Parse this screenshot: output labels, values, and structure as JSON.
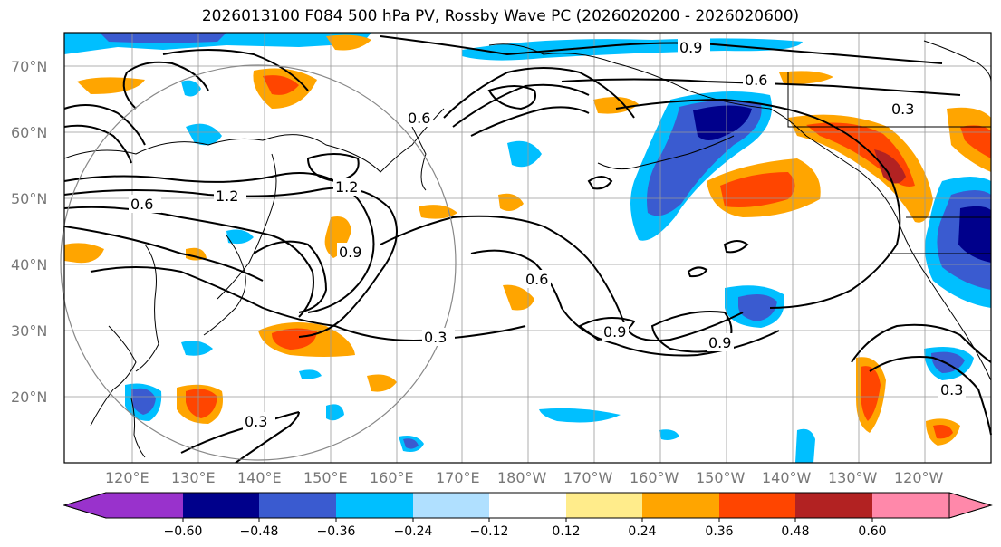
{
  "title": "2026013100 F084 500 hPa PV, Rossby Wave PC (2026020200 - 2026020600)",
  "lat_labels": [
    "70°N",
    "60°N",
    "50°N",
    "40°N",
    "30°N",
    "20°N"
  ],
  "lon_labels": [
    "120°E",
    "130°E",
    "140°E",
    "150°E",
    "160°E",
    "170°E",
    "180°W",
    "170°W",
    "160°W",
    "150°W",
    "140°W",
    "130°W",
    "120°W"
  ],
  "colorbar": {
    "ticks": [
      "−0.60",
      "−0.48",
      "−0.36",
      "−0.24",
      "−0.12",
      "0.12",
      "0.24",
      "0.36",
      "0.48",
      "0.60"
    ],
    "colors": [
      "#9932cc",
      "#00008b",
      "#3a5bd0",
      "#00bfff",
      "#b0e0ff",
      "#ffffff",
      "#ffec8b",
      "#ffa500",
      "#ff4500",
      "#b22222",
      "#ff88aa"
    ]
  },
  "contour_labels": [
    "0.9",
    "0.6",
    "0.3",
    "1.2",
    "0.6",
    "0.9",
    "0.6",
    "0.3",
    "0.9",
    "0.9",
    "1.2",
    "0.6",
    "0.3",
    "0.3"
  ],
  "colors": {
    "grid": "#999999",
    "contour": "#000000",
    "map_border": "#000000"
  }
}
